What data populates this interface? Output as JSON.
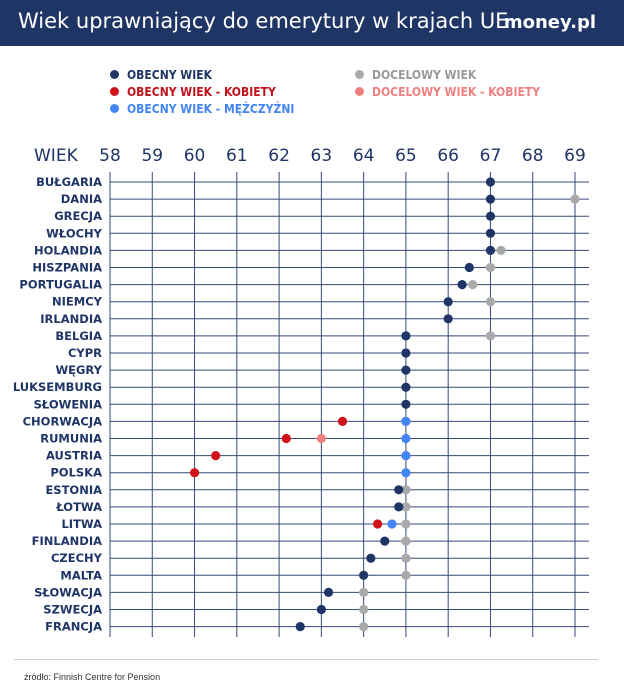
{
  "header": {
    "title": "Wiek uprawniający do emerytury w krajach UE",
    "logo": "money.pl"
  },
  "colors": {
    "header_bg": "#1f3566",
    "obecny": "#1f3566",
    "obecny_kobiety": "#d0121b",
    "obecny_mezczyzni": "#4285f4",
    "docelowy": "#a9a9a9",
    "docelowy_kobiety": "#f08080"
  },
  "legend": [
    {
      "key": "obecny",
      "label": "OBECNY WIEK",
      "text_color": "#1f3566"
    },
    {
      "key": "obecny_kobiety",
      "label": "OBECNY WIEK - KOBIETY",
      "text_color": "#c0121b"
    },
    {
      "key": "obecny_mezczyzni",
      "label": "OBECNY WIEK - MĘŻCZYŹNI",
      "text_color": "#4285f4"
    },
    {
      "key": "docelowy",
      "label": "DOCELOWY WIEK",
      "text_color": "#999999"
    },
    {
      "key": "docelowy_kobiety",
      "label": "DOCELOWY WIEK - KOBIETY",
      "text_color": "#f08080"
    }
  ],
  "chart_data": {
    "type": "scatter",
    "title": "Wiek uprawniający do emerytury w krajach UE",
    "xlabel": "WIEK",
    "xlim": [
      58,
      69
    ],
    "x_ticks": [
      58,
      59,
      60,
      61,
      62,
      63,
      64,
      65,
      66,
      67,
      68,
      69
    ],
    "countries": [
      "BUŁGARIA",
      "DANIA",
      "GRECJA",
      "WŁOCHY",
      "HOLANDIA",
      "HISZPANIA",
      "PORTUGALIA",
      "NIEMCY",
      "IRLANDIA",
      "BELGIA",
      "CYPR",
      "WĘGRY",
      "LUKSEMBURG",
      "SŁOWENIA",
      "CHORWACJA",
      "RUMUNIA",
      "AUSTRIA",
      "POLSKA",
      "ESTONIA",
      "ŁOTWA",
      "LITWA",
      "FINLANDIA",
      "CZECHY",
      "MALTA",
      "SŁOWACJA",
      "SZWECJA",
      "FRANCJA"
    ],
    "series": [
      {
        "name": "DOCELOWY WIEK",
        "key": "docelowy",
        "values": [
          null,
          69,
          null,
          null,
          67.25,
          67,
          66.58,
          67,
          null,
          67,
          null,
          null,
          null,
          null,
          null,
          null,
          null,
          null,
          65,
          65,
          65,
          65,
          65,
          65,
          64,
          64,
          64
        ]
      },
      {
        "name": "DOCELOWY WIEK - KOBIETY",
        "key": "docelowy_kobiety",
        "values": [
          null,
          null,
          null,
          null,
          null,
          null,
          null,
          null,
          null,
          null,
          null,
          null,
          null,
          null,
          65,
          63,
          65,
          null,
          null,
          null,
          null,
          null,
          null,
          null,
          null,
          null,
          null
        ]
      },
      {
        "name": "OBECNY WIEK - MĘŻCZYŹNI",
        "key": "obecny_mezczyzni",
        "values": [
          null,
          null,
          null,
          null,
          null,
          null,
          null,
          null,
          null,
          null,
          null,
          null,
          null,
          null,
          65,
          65,
          65,
          65,
          null,
          null,
          64.67,
          null,
          null,
          null,
          null,
          null,
          null
        ]
      },
      {
        "name": "OBECNY WIEK - KOBIETY",
        "key": "obecny_kobiety",
        "values": [
          null,
          null,
          null,
          null,
          null,
          null,
          null,
          null,
          null,
          null,
          null,
          null,
          null,
          null,
          63.5,
          62.17,
          60.5,
          60,
          null,
          null,
          64.33,
          null,
          null,
          null,
          null,
          null,
          null
        ]
      },
      {
        "name": "OBECNY WIEK",
        "key": "obecny",
        "values": [
          67,
          67,
          67,
          67,
          67,
          66.5,
          66.33,
          66,
          66,
          65,
          65,
          65,
          65,
          65,
          null,
          null,
          null,
          null,
          64.83,
          64.83,
          null,
          64.5,
          64.17,
          64,
          63.17,
          63,
          62.5
        ]
      }
    ]
  },
  "source": "źródło: Finnish Centre for Pension"
}
